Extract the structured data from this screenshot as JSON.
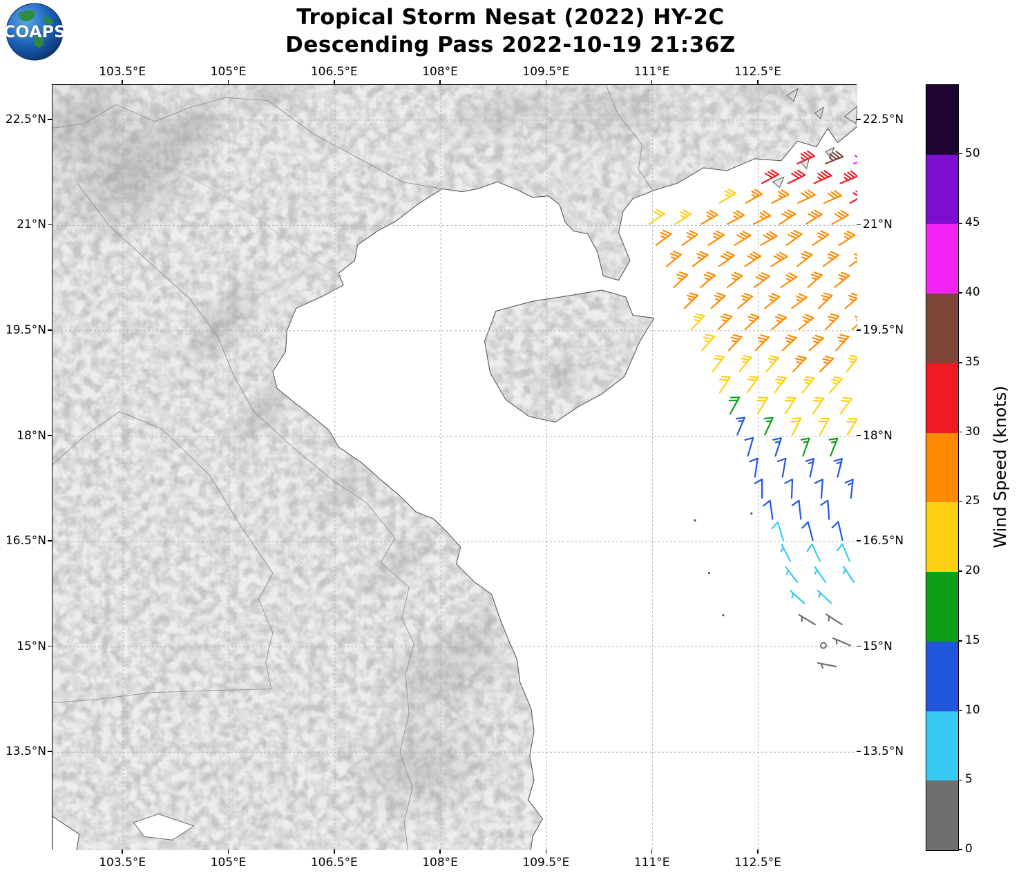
{
  "header": {
    "title_line1": "Tropical Storm Nesat (2022) HY-2C",
    "title_line2": "Descending Pass 2022-10-19 21:36Z",
    "logo_text": "COAPS"
  },
  "axes": {
    "lon_ticks": [
      "103.5°E",
      "105°E",
      "106.5°E",
      "108°E",
      "109.5°E",
      "111°E",
      "112.5°E"
    ],
    "lon_values": [
      103.5,
      105,
      106.5,
      108,
      109.5,
      111,
      112.5
    ],
    "lat_ticks": [
      "22.5°N",
      "21°N",
      "19.5°N",
      "18°N",
      "16.5°N",
      "15°N",
      "13.5°N"
    ],
    "lat_values": [
      22.5,
      21,
      19.5,
      18,
      16.5,
      15,
      13.5
    ]
  },
  "colorbar": {
    "label": "Wind Speed (knots)",
    "tick_values": [
      0,
      5,
      10,
      15,
      20,
      25,
      30,
      35,
      40,
      45,
      50
    ],
    "bin_edges": [
      0,
      5,
      10,
      15,
      20,
      25,
      30,
      35,
      40,
      45,
      50,
      55
    ],
    "colors": [
      "#6f6f6f",
      "#36c9f4",
      "#2256dd",
      "#0b9e16",
      "#ffd012",
      "#ff8a00",
      "#ef1a23",
      "#7d4639",
      "#f523f5",
      "#7d0ecf",
      "#1e0433"
    ]
  },
  "chart_data": {
    "type": "wind_barb_map",
    "storm": "Tropical Storm Nesat (2022)",
    "satellite": "HY-2C",
    "pass": "Descending",
    "valid_time": "2022-10-19 21:36Z",
    "units": "knots",
    "map_extent": {
      "lon_min": 102.5,
      "lon_max": 113.9,
      "lat_min": 12.1,
      "lat_max": 23.0
    },
    "grid": true,
    "wind_rows": [
      {
        "lat": 21.88,
        "lon_start": 113.05,
        "lon_step": 0.4,
        "dir_from": 70,
        "speeds_kt": [
          33,
          37,
          42
        ]
      },
      {
        "lat": 21.6,
        "lon_start": 112.55,
        "lon_step": 0.37,
        "dir_from": 66,
        "speeds_kt": [
          30,
          32,
          33,
          34
        ]
      },
      {
        "lat": 21.32,
        "lon_start": 111.95,
        "lon_step": 0.37,
        "dir_from": 63,
        "speeds_kt": [
          23,
          25,
          26,
          28,
          29,
          30
        ]
      },
      {
        "lat": 21.02,
        "lon_start": 110.95,
        "lon_step": 0.37,
        "dir_from": 60,
        "speeds_kt": [
          22,
          24,
          26,
          27,
          27,
          28,
          28,
          29
        ]
      },
      {
        "lat": 20.72,
        "lon_start": 111.05,
        "lon_step": 0.37,
        "dir_from": 57,
        "speeds_kt": [
          26,
          27,
          27,
          28,
          28,
          28,
          27,
          27
        ]
      },
      {
        "lat": 20.42,
        "lon_start": 111.2,
        "lon_step": 0.37,
        "dir_from": 55,
        "speeds_kt": [
          26,
          27,
          28,
          28,
          28,
          27,
          27,
          26
        ]
      },
      {
        "lat": 20.12,
        "lon_start": 111.3,
        "lon_step": 0.38,
        "dir_from": 52,
        "speeds_kt": [
          26,
          27,
          27,
          28,
          27,
          27,
          26
        ]
      },
      {
        "lat": 19.82,
        "lon_start": 111.45,
        "lon_step": 0.38,
        "dir_from": 50,
        "speeds_kt": [
          25,
          26,
          27,
          27,
          27,
          26,
          26
        ]
      },
      {
        "lat": 19.52,
        "lon_start": 111.55,
        "lon_step": 0.38,
        "dir_from": 48,
        "speeds_kt": [
          24,
          25,
          26,
          27,
          26,
          26,
          25
        ]
      },
      {
        "lat": 19.22,
        "lon_start": 111.7,
        "lon_step": 0.38,
        "dir_from": 45,
        "speeds_kt": [
          23,
          25,
          26,
          26,
          26,
          25
        ]
      },
      {
        "lat": 18.92,
        "lon_start": 111.85,
        "lon_step": 0.38,
        "dir_from": 42,
        "speeds_kt": [
          22,
          23,
          24,
          25,
          25,
          24
        ]
      },
      {
        "lat": 18.62,
        "lon_start": 111.95,
        "lon_step": 0.39,
        "dir_from": 38,
        "speeds_kt": [
          21,
          22,
          23,
          23,
          23,
          22
        ]
      },
      {
        "lat": 18.32,
        "lon_start": 112.1,
        "lon_step": 0.39,
        "dir_from": 33,
        "speeds_kt": [
          18,
          21,
          22,
          22,
          22
        ]
      },
      {
        "lat": 18.02,
        "lon_start": 112.2,
        "lon_step": 0.39,
        "dir_from": 27,
        "speeds_kt": [
          14,
          17,
          20,
          21,
          21
        ]
      },
      {
        "lat": 17.72,
        "lon_start": 112.35,
        "lon_step": 0.39,
        "dir_from": 20,
        "speeds_kt": [
          12,
          13,
          15,
          17,
          18
        ]
      },
      {
        "lat": 17.42,
        "lon_start": 112.45,
        "lon_step": 0.39,
        "dir_from": 12,
        "speeds_kt": [
          11,
          12,
          13,
          14
        ]
      },
      {
        "lat": 17.12,
        "lon_start": 112.55,
        "lon_step": 0.42,
        "dir_from": 4,
        "speeds_kt": [
          11,
          12,
          12,
          13
        ]
      },
      {
        "lat": 16.82,
        "lon_start": 112.7,
        "lon_step": 0.4,
        "dir_from": 356,
        "speeds_kt": [
          10,
          11,
          12,
          12
        ]
      },
      {
        "lat": 16.52,
        "lon_start": 112.85,
        "lon_step": 0.42,
        "dir_from": 347,
        "speeds_kt": [
          8,
          10,
          11
        ]
      },
      {
        "lat": 16.22,
        "lon_start": 112.95,
        "lon_step": 0.42,
        "dir_from": 337,
        "speeds_kt": [
          7,
          8,
          9
        ]
      },
      {
        "lat": 15.92,
        "lon_start": 113.05,
        "lon_step": 0.4,
        "dir_from": 327,
        "speeds_kt": [
          6,
          7,
          7
        ]
      },
      {
        "lat": 15.62,
        "lon_start": 113.15,
        "lon_step": 0.38,
        "dir_from": 316,
        "speeds_kt": [
          5,
          6,
          6
        ]
      },
      {
        "lat": 15.32,
        "lon_start": 113.3,
        "lon_step": 0.38,
        "dir_from": 305,
        "speeds_kt": [
          3,
          4
        ]
      },
      {
        "lat": 15.02,
        "lon_start": 113.42,
        "lon_step": 0.38,
        "dir_from": 295,
        "speeds_kt": [
          2,
          3
        ]
      },
      {
        "lat": 14.72,
        "lon_start": 113.6,
        "lon_step": 0.38,
        "dir_from": 285,
        "speeds_kt": [
          3
        ]
      }
    ]
  }
}
